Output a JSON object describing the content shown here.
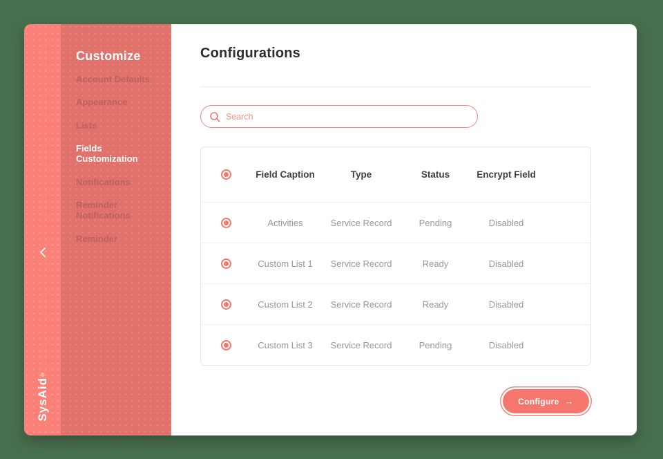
{
  "brand": {
    "logo": "SysAid",
    "registered": "®"
  },
  "colors": {
    "background": "#48704E",
    "rail": "#FA8078",
    "sidebar": "#E1726B",
    "accent_coral": "#F4766C",
    "active_text": "#FFFFFF",
    "inactive_text": "#BC615C"
  },
  "sidebar": {
    "title": "Customize",
    "items": [
      {
        "label": "Account Defaults",
        "active": false
      },
      {
        "label": "Appearance",
        "active": false
      },
      {
        "label": "Lists",
        "active": false
      },
      {
        "label": "Fields Customization",
        "active": true
      },
      {
        "label": "Notifications",
        "active": false
      },
      {
        "label": "Reminder Notifications",
        "active": false
      },
      {
        "label": "Reminder",
        "active": false
      }
    ],
    "collapse_icon": "chevron-left-icon"
  },
  "main": {
    "title": "Configurations",
    "search": {
      "placeholder": "Search",
      "icon": "search-icon"
    },
    "table": {
      "columns": [
        "",
        "Field Caption",
        "Type",
        "Status",
        "Encrypt Field"
      ],
      "row_icon": "radio-icon",
      "rows": [
        {
          "field_caption": "Activities",
          "type": "Service Record",
          "status": "Pending",
          "encrypt_field": "Disabled"
        },
        {
          "field_caption": "Custom List 1",
          "type": "Service Record",
          "status": "Ready",
          "encrypt_field": "Disabled"
        },
        {
          "field_caption": "Custom List 2",
          "type": "Service Record",
          "status": "Ready",
          "encrypt_field": "Disabled"
        },
        {
          "field_caption": "Custom List 3",
          "type": "Service Record",
          "status": "Pending",
          "encrypt_field": "Disabled"
        }
      ]
    },
    "configure_button": {
      "label": "Configure",
      "arrow": "→",
      "icon": "arrow-right-icon"
    }
  }
}
